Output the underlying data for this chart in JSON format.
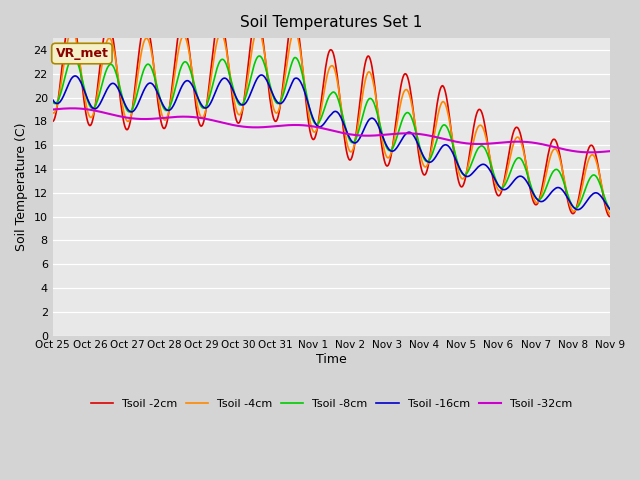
{
  "title": "Soil Temperatures Set 1",
  "xlabel": "Time",
  "ylabel": "Soil Temperature (C)",
  "ylim": [
    0,
    25
  ],
  "yticks": [
    0,
    2,
    4,
    6,
    8,
    10,
    12,
    14,
    16,
    18,
    20,
    22,
    24
  ],
  "xtick_labels": [
    "Oct 25",
    "Oct 26",
    "Oct 27",
    "Oct 28",
    "Oct 29",
    "Oct 30",
    "Oct 31",
    "Nov 1",
    "Nov 2",
    "Nov 3",
    "Nov 4",
    "Nov 5",
    "Nov 6",
    "Nov 7",
    "Nov 8",
    "Nov 9"
  ],
  "annotation": "VR_met",
  "fig_bg_color": "#d4d4d4",
  "plot_bg_color": "#e8e8e8",
  "colors": {
    "2cm": "#dd0000",
    "4cm": "#ff8800",
    "8cm": "#00cc00",
    "16cm": "#0000cc",
    "32cm": "#cc00cc"
  },
  "legend_labels": [
    "Tsoil -2cm",
    "Tsoil -4cm",
    "Tsoil -8cm",
    "Tsoil -16cm",
    "Tsoil -32cm"
  ],
  "n_points_per_day": 48,
  "n_days": 15,
  "base_trend": [
    22.5,
    21.8,
    21.8,
    22.0,
    22.2,
    22.5,
    22.5,
    19.5,
    19.0,
    18.0,
    17.0,
    15.5,
    14.5,
    13.5,
    13.0
  ],
  "amplitude_2cm": [
    4.5,
    4.5,
    4.5,
    4.5,
    4.5,
    4.5,
    4.5,
    4.5,
    4.5,
    4.0,
    4.0,
    3.5,
    3.0,
    3.0,
    3.0
  ],
  "amplitude_4cm": [
    3.5,
    3.5,
    3.5,
    3.5,
    3.5,
    3.5,
    3.5,
    3.5,
    3.5,
    3.0,
    3.0,
    2.5,
    2.5,
    2.5,
    2.5
  ],
  "amplitude_8cm": [
    2.0,
    2.0,
    2.0,
    2.0,
    2.0,
    2.0,
    2.0,
    2.0,
    2.0,
    1.8,
    1.8,
    1.5,
    1.5,
    1.5,
    1.5
  ],
  "amplitude_16cm": [
    1.2,
    1.2,
    1.2,
    1.2,
    1.2,
    1.2,
    1.2,
    1.2,
    1.2,
    1.0,
    1.0,
    0.8,
    0.8,
    0.8,
    0.8
  ],
  "phase_shift_4": 0.15,
  "phase_shift_8": 0.4,
  "phase_shift_16": 0.75
}
